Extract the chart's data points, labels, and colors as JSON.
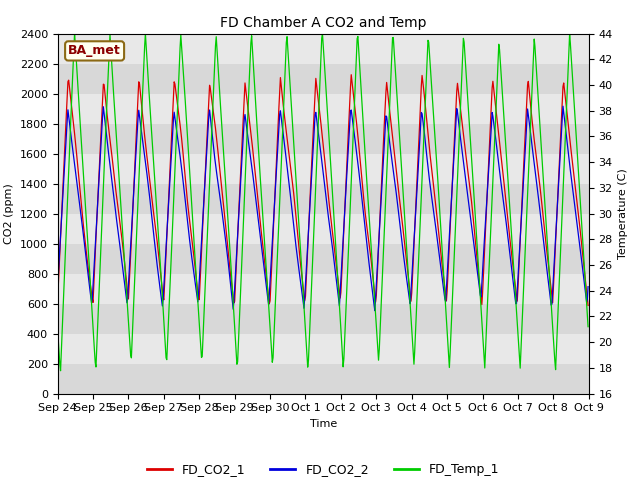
{
  "title": "FD Chamber A CO2 and Temp",
  "xlabel": "Time",
  "ylabel_left": "CO2 (ppm)",
  "ylabel_right": "Temperature (C)",
  "annotation": "BA_met",
  "ylim_left": [
    0,
    2400
  ],
  "ylim_right": [
    16,
    44
  ],
  "legend_labels": [
    "FD_CO2_1",
    "FD_CO2_2",
    "FD_Temp_1"
  ],
  "legend_colors": [
    "#dd0000",
    "#0000dd",
    "#00cc00"
  ],
  "line_width": 0.9,
  "background_color": "#ffffff",
  "plot_bg_light": "#e8e8e8",
  "plot_bg_dark": "#d0d0d0",
  "title_fontsize": 10,
  "axis_fontsize": 8,
  "tick_fontsize": 8
}
